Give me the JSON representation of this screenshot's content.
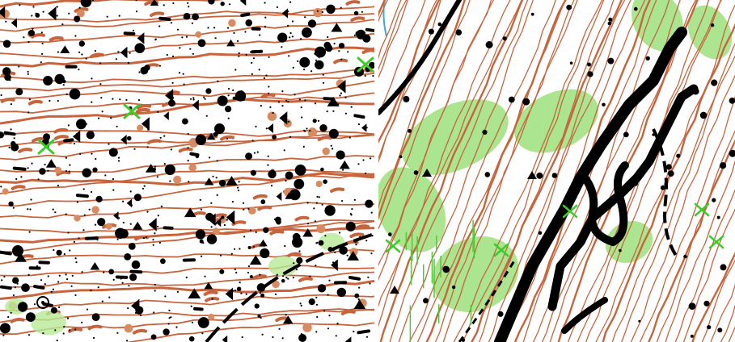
{
  "colors": {
    "background": "#ffffff",
    "contour": "#c8643c",
    "contour_light": "#d98b5f",
    "feature": "#000000",
    "vegetation": "#8fdc6a",
    "vegetation_light": "#b6ea95",
    "marsh_green": "#4fc83a",
    "water": "#3aa7e0",
    "link_blue": "#2a34ff",
    "marker": "#3ccc2a"
  },
  "panels": [
    {
      "id": "left",
      "description_icon": "map-boulder-field-icon"
    },
    {
      "id": "right",
      "description_icon": "map-cliff-terrain-icon"
    }
  ]
}
